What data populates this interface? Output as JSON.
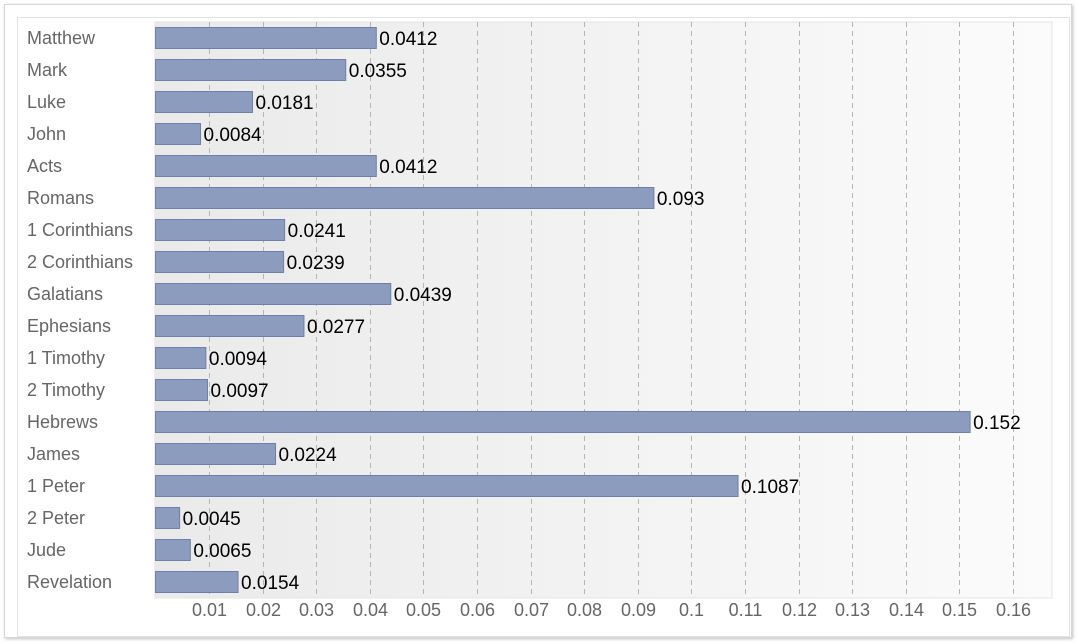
{
  "chart_data": {
    "type": "bar",
    "orientation": "horizontal",
    "title": "",
    "xlabel": "",
    "ylabel": "",
    "categories": [
      "Matthew",
      "Mark",
      "Luke",
      "John",
      "Acts",
      "Romans",
      "1 Corinthians",
      "2 Corinthians",
      "Galatians",
      "Ephesians",
      "1 Timothy",
      "2 Timothy",
      "Hebrews",
      "James",
      "1 Peter",
      "2 Peter",
      "Jude",
      "Revelation"
    ],
    "values": [
      0.0412,
      0.0355,
      0.0181,
      0.0084,
      0.0412,
      0.093,
      0.0241,
      0.0239,
      0.0439,
      0.0277,
      0.0094,
      0.0097,
      0.152,
      0.0224,
      0.1087,
      0.0045,
      0.0065,
      0.0154
    ],
    "value_labels": [
      "0.0412",
      "0.0355",
      "0.0181",
      "0.0084",
      "0.0412",
      "0.093",
      "0.0241",
      "0.0239",
      "0.0439",
      "0.0277",
      "0.0094",
      "0.0097",
      "0.152",
      "0.0224",
      "0.1087",
      "0.0045",
      "0.0065",
      "0.0154"
    ],
    "xticks": [
      0.01,
      0.02,
      0.03,
      0.04,
      0.05,
      0.06,
      0.07,
      0.08,
      0.09,
      0.1,
      0.11,
      0.12,
      0.13,
      0.14,
      0.15,
      0.16
    ],
    "xtick_labels": [
      "0.01",
      "0.02",
      "0.03",
      "0.04",
      "0.05",
      "0.06",
      "0.07",
      "0.08",
      "0.09",
      "0.1",
      "0.11",
      "0.12",
      "0.13",
      "0.14",
      "0.15",
      "0.16"
    ],
    "xlim": [
      0,
      0.1673
    ],
    "grid": true,
    "legend": "none",
    "colors": {
      "bar": "#8c9cbf",
      "bar_border": "#6f7fa6",
      "grid": "#b5b5b5"
    }
  }
}
